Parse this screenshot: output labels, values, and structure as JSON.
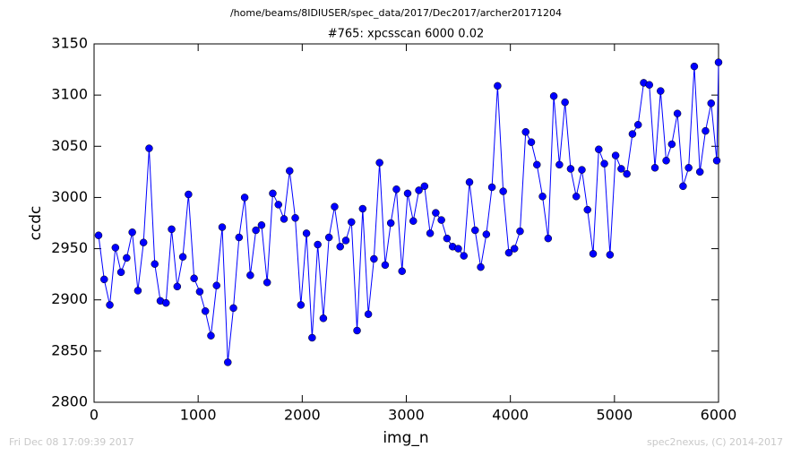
{
  "chart_data": {
    "type": "line",
    "suptitle": "/home/beams/8IDIUSER/spec_data/2017/Dec2017/archer20171204",
    "title": "#765: xpcsscan 6000 0.02",
    "xlabel": "img_n",
    "ylabel": "ccdc",
    "footer_left": "Fri Dec 08 17:09:39 2017",
    "footer_right": "spec2nexus, (C) 2014-2017",
    "xlim": [
      0,
      6000
    ],
    "ylim": [
      2800,
      3150
    ],
    "xticks": [
      0,
      1000,
      2000,
      3000,
      4000,
      5000,
      6000
    ],
    "yticks": [
      2800,
      2850,
      2900,
      2950,
      3000,
      3050,
      3100,
      3150
    ],
    "grid": false,
    "series": [
      {
        "color": "#0000ff",
        "x": [
          43,
          97,
          151,
          205,
          259,
          313,
          367,
          421,
          475,
          529,
          583,
          637,
          691,
          745,
          799,
          853,
          907,
          961,
          1015,
          1069,
          1123,
          1177,
          1231,
          1285,
          1339,
          1393,
          1447,
          1501,
          1555,
          1609,
          1663,
          1717,
          1771,
          1825,
          1879,
          1933,
          1987,
          2041,
          2095,
          2149,
          2203,
          2257,
          2311,
          2365,
          2419,
          2473,
          2527,
          2581,
          2635,
          2689,
          2743,
          2797,
          2851,
          2905,
          2959,
          3013,
          3067,
          3121,
          3175,
          3229,
          3283,
          3337,
          3391,
          3445,
          3499,
          3553,
          3607,
          3661,
          3715,
          3769,
          3823,
          3877,
          3931,
          3985,
          4039,
          4093,
          4147,
          4201,
          4255,
          4309,
          4363,
          4417,
          4471,
          4525,
          4579,
          4633,
          4687,
          4741,
          4795,
          4849,
          4903,
          4957,
          5011,
          5065,
          5119,
          5173,
          5227,
          5281,
          5335,
          5389,
          5443,
          5497,
          5551,
          5605,
          5659,
          5713,
          5767,
          5821,
          5875,
          5929,
          5983,
          6000
        ],
        "values": [
          2963,
          2920,
          2895,
          2951,
          2927,
          2941,
          2966,
          2909,
          2956,
          3048,
          2935,
          2899,
          2897,
          2969,
          2913,
          2942,
          3003,
          2921,
          2908,
          2889,
          2865,
          2914,
          2971,
          2839,
          2892,
          2961,
          3000,
          2924,
          2968,
          2973,
          2917,
          3004,
          2993,
          2979,
          3026,
          2980,
          2895,
          2965,
          2863,
          2954,
          2882,
          2961,
          2991,
          2952,
          2958,
          2976,
          2870,
          2989,
          2886,
          2940,
          3034,
          2934,
          2975,
          3008,
          2928,
          3004,
          2977,
          3007,
          3011,
          2965,
          2985,
          2978,
          2960,
          2952,
          2950,
          2943,
          3015,
          2968,
          2932,
          2964,
          3010,
          3109,
          3006,
          2946,
          2950,
          2967,
          3064,
          3054,
          3032,
          3001,
          2960,
          3099,
          3032,
          3093,
          3028,
          3001,
          3027,
          2988,
          2945,
          3047,
          3033,
          2944,
          3041,
          3028,
          3023,
          3062,
          3071,
          3112,
          3110,
          3029,
          3104,
          3036,
          3052,
          3082,
          3011,
          3029,
          3128,
          3025,
          3065,
          3092,
          3036,
          3132
        ]
      }
    ]
  }
}
